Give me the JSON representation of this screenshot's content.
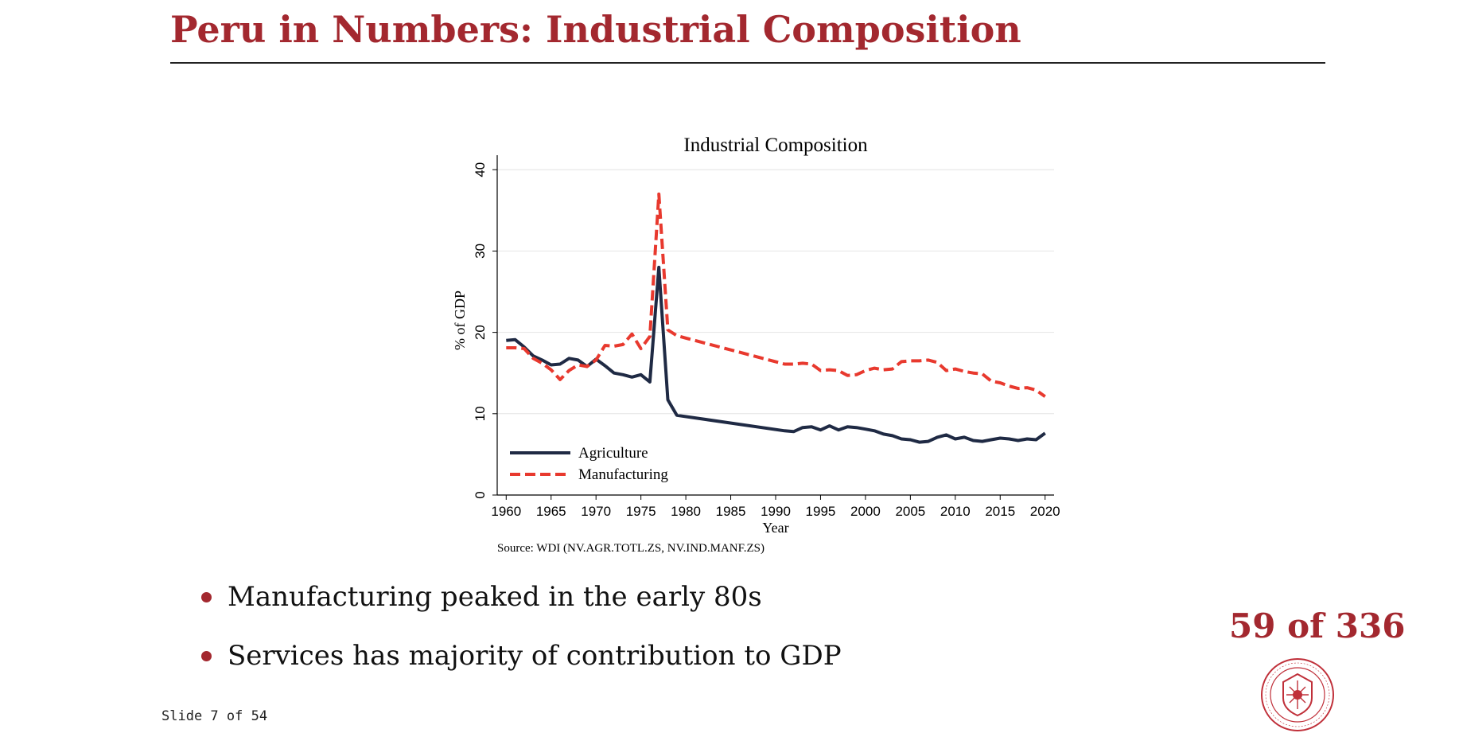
{
  "slide": {
    "title": "Peru in Numbers: Industrial Composition",
    "bullets": [
      "Manufacturing peaked in the early 80s",
      "Services has majority of contribution to GDP"
    ],
    "page_counter": "59 of 336",
    "footer": "Slide 7 of 54",
    "accent_color": "#a3282f"
  },
  "chart_data": {
    "type": "line",
    "title": "Industrial Composition",
    "xlabel": "Year",
    "ylabel": "% of GDP",
    "note": "Source: WDI (NV.AGR.TOTL.ZS, NV.IND.MANF.ZS)",
    "xlim": [
      1959,
      2021
    ],
    "ylim": [
      0,
      41
    ],
    "x_ticks": [
      1960,
      1965,
      1970,
      1975,
      1980,
      1985,
      1990,
      1995,
      2000,
      2005,
      2010,
      2015,
      2020
    ],
    "y_ticks": [
      0,
      10,
      20,
      30,
      40
    ],
    "grid": true,
    "legend_position": "bottom-left",
    "series": [
      {
        "name": "Agriculture",
        "color": "#1f2a44",
        "style": "solid",
        "points": [
          [
            1960,
            19
          ],
          [
            1961,
            19.1
          ],
          [
            1962,
            18.2
          ],
          [
            1963,
            17.1
          ],
          [
            1964,
            16.6
          ],
          [
            1965,
            16
          ],
          [
            1966,
            16.1
          ],
          [
            1967,
            16.8
          ],
          [
            1968,
            16.6
          ],
          [
            1969,
            15.8
          ],
          [
            1970,
            16.7
          ],
          [
            1971,
            15.9
          ],
          [
            1972,
            15
          ],
          [
            1973,
            14.8
          ],
          [
            1974,
            14.5
          ],
          [
            1975,
            14.8
          ],
          [
            1976,
            13.9
          ],
          [
            1977,
            28
          ],
          [
            1978,
            11.7
          ],
          [
            1979,
            9.8
          ],
          [
            1991,
            7.9
          ],
          [
            1992,
            7.8
          ],
          [
            1993,
            8.3
          ],
          [
            1994,
            8.4
          ],
          [
            1995,
            8
          ],
          [
            1996,
            8.5
          ],
          [
            1997,
            8
          ],
          [
            1998,
            8.4
          ],
          [
            1999,
            8.3
          ],
          [
            2000,
            8.1
          ],
          [
            2001,
            7.9
          ],
          [
            2002,
            7.5
          ],
          [
            2003,
            7.3
          ],
          [
            2004,
            6.9
          ],
          [
            2005,
            6.8
          ],
          [
            2006,
            6.5
          ],
          [
            2007,
            6.6
          ],
          [
            2008,
            7.1
          ],
          [
            2009,
            7.4
          ],
          [
            2010,
            6.9
          ],
          [
            2011,
            7.1
          ],
          [
            2012,
            6.7
          ],
          [
            2013,
            6.6
          ],
          [
            2014,
            6.8
          ],
          [
            2015,
            7
          ],
          [
            2016,
            6.9
          ],
          [
            2017,
            6.7
          ],
          [
            2018,
            6.9
          ],
          [
            2019,
            6.8
          ],
          [
            2020,
            7.6
          ]
        ]
      },
      {
        "name": "Manufacturing",
        "color": "#e8392e",
        "style": "dashed",
        "points": [
          [
            1960,
            18.1
          ],
          [
            1961,
            18.1
          ],
          [
            1962,
            18
          ],
          [
            1963,
            16.8
          ],
          [
            1964,
            16.2
          ],
          [
            1965,
            15.4
          ],
          [
            1966,
            14.2
          ],
          [
            1967,
            15.3
          ],
          [
            1968,
            16
          ],
          [
            1969,
            15.8
          ],
          [
            1970,
            16.6
          ],
          [
            1971,
            18.4
          ],
          [
            1972,
            18.3
          ],
          [
            1973,
            18.5
          ],
          [
            1974,
            19.8
          ],
          [
            1975,
            18
          ],
          [
            1976,
            19.5
          ],
          [
            1977,
            37
          ],
          [
            1978,
            20.3
          ],
          [
            1979,
            19.6
          ],
          [
            1980,
            19.3
          ],
          [
            1991,
            16.1
          ],
          [
            1992,
            16.1
          ],
          [
            1993,
            16.2
          ],
          [
            1994,
            16.1
          ],
          [
            1995,
            15.3
          ],
          [
            1996,
            15.4
          ],
          [
            1997,
            15.3
          ],
          [
            1998,
            14.7
          ],
          [
            1999,
            14.8
          ],
          [
            2000,
            15.3
          ],
          [
            2001,
            15.6
          ],
          [
            2002,
            15.4
          ],
          [
            2003,
            15.5
          ],
          [
            2004,
            16.4
          ],
          [
            2005,
            16.5
          ],
          [
            2006,
            16.5
          ],
          [
            2007,
            16.6
          ],
          [
            2008,
            16.3
          ],
          [
            2009,
            15.3
          ],
          [
            2010,
            15.5
          ],
          [
            2011,
            15.2
          ],
          [
            2012,
            15
          ],
          [
            2013,
            14.9
          ],
          [
            2014,
            14
          ],
          [
            2015,
            13.8
          ],
          [
            2016,
            13.4
          ],
          [
            2017,
            13.1
          ],
          [
            2018,
            13.2
          ],
          [
            2019,
            12.9
          ],
          [
            2020,
            12.1
          ]
        ]
      }
    ]
  }
}
